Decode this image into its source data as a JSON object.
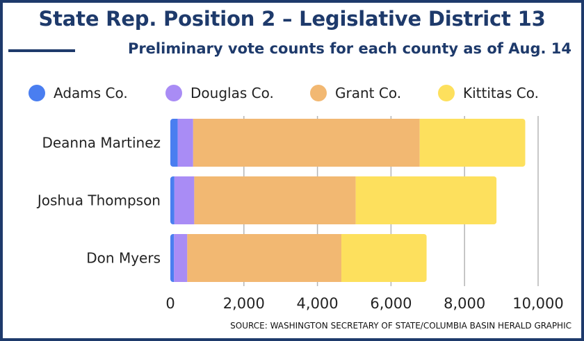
{
  "chart_data": {
    "type": "bar",
    "orientation": "horizontal",
    "stacked": true,
    "title": "State Rep. Position 2 – Legislative District 13",
    "subtitle": "Preliminary vote counts for each county as of Aug. 14",
    "source": "SOURCE: WASHINGTON SECRETARY OF STATE/COLUMBIA BASIN HERALD GRAPHIC",
    "categories": [
      "Deanna Martinez",
      "Joshua Thompson",
      "Don Myers"
    ],
    "series": [
      {
        "name": "Adams Co.",
        "color": "#4a7ef0",
        "values": [
          200,
          110,
          100
        ]
      },
      {
        "name": "Douglas Co.",
        "color": "#a98cf5",
        "values": [
          420,
          540,
          360
        ]
      },
      {
        "name": "Grant Co.",
        "color": "#f2b872",
        "values": [
          6160,
          4390,
          4190
        ]
      },
      {
        "name": "Kittitas Co.",
        "color": "#fde05d",
        "values": [
          2870,
          3830,
          2320
        ]
      }
    ],
    "xlim": [
      0,
      10000
    ],
    "xticks": [
      0,
      2000,
      4000,
      6000,
      8000,
      10000
    ],
    "xtick_labels": [
      "0",
      "2,000",
      "4,000",
      "6,000",
      "8,000",
      "10,000"
    ],
    "grid": true,
    "legend": "top"
  }
}
